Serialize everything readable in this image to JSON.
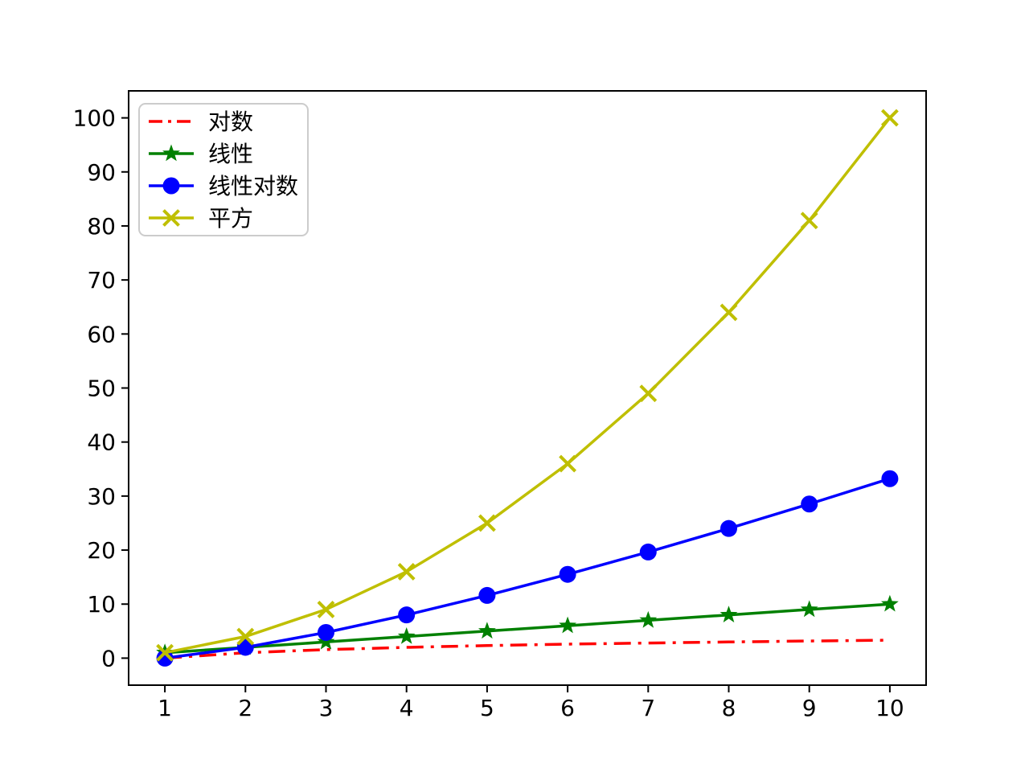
{
  "chart_data": {
    "type": "line",
    "x": [
      1,
      2,
      3,
      4,
      5,
      6,
      7,
      8,
      9,
      10
    ],
    "series": [
      {
        "id": "log",
        "name": "对数",
        "color": "#ff0000",
        "linestyle": "dashdot",
        "marker": "none",
        "values": [
          0,
          1,
          1.585,
          2,
          2.322,
          2.585,
          2.807,
          3,
          3.17,
          3.322
        ]
      },
      {
        "id": "linear",
        "name": "线性",
        "color": "#008000",
        "linestyle": "solid",
        "marker": "star",
        "values": [
          1,
          2,
          3,
          4,
          5,
          6,
          7,
          8,
          9,
          10
        ]
      },
      {
        "id": "linearithmic",
        "name": "线性对数",
        "color": "#0000ff",
        "linestyle": "solid",
        "marker": "circle",
        "values": [
          0,
          2,
          4.755,
          8,
          11.61,
          15.51,
          19.651,
          24,
          28.529,
          33.219
        ]
      },
      {
        "id": "square",
        "name": "平方",
        "color": "#bfbf00",
        "linestyle": "solid",
        "marker": "x",
        "values": [
          1,
          4,
          9,
          16,
          25,
          36,
          49,
          64,
          81,
          100
        ]
      }
    ],
    "title": "",
    "xlabel": "",
    "ylabel": "",
    "xlim": [
      0.55,
      10.45
    ],
    "ylim": [
      -5,
      105
    ],
    "xticks": [
      1,
      2,
      3,
      4,
      5,
      6,
      7,
      8,
      9,
      10
    ],
    "yticks": [
      0,
      10,
      20,
      30,
      40,
      50,
      60,
      70,
      80,
      90,
      100
    ],
    "grid": false,
    "legend": {
      "position": "upper left",
      "labels": [
        "对数",
        "线性",
        "线性对数",
        "平方"
      ]
    },
    "colors": {
      "background": "#ffffff",
      "axes_frame": "#000000",
      "tick_label": "#000000",
      "legend_border": "#cccccc",
      "legend_background": "#ffffff"
    }
  }
}
